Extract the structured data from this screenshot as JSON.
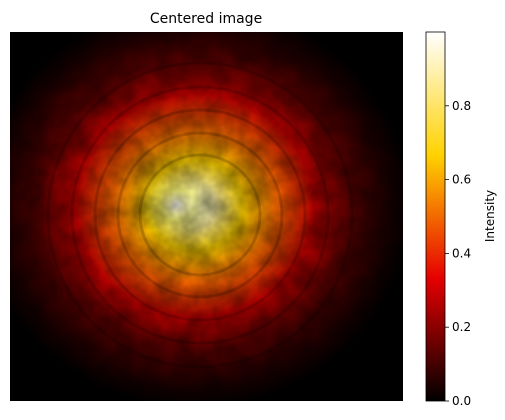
{
  "chart_data": {
    "type": "heatmap",
    "title": "Centered image",
    "xlabel": "",
    "ylabel": "",
    "axes_visible": false,
    "colormap": "hot",
    "colorbar": {
      "label": "Intensity",
      "range": [
        0.0,
        1.0
      ],
      "ticks": [
        {
          "value": 0.0,
          "label": "0.0"
        },
        {
          "value": 0.2,
          "label": "0.2"
        },
        {
          "value": 0.4,
          "label": "0.4"
        },
        {
          "value": 0.6,
          "label": "0.6"
        },
        {
          "value": 0.8,
          "label": "0.8"
        }
      ]
    },
    "spot": {
      "peak_center": [
        0.46,
        0.47
      ],
      "peak_intensity": 1.0,
      "background_intensity": 0.0
    }
  },
  "colors": {
    "cmap_stops": [
      "#000000",
      "#e60000",
      "#ffd200",
      "#ffffff"
    ]
  }
}
